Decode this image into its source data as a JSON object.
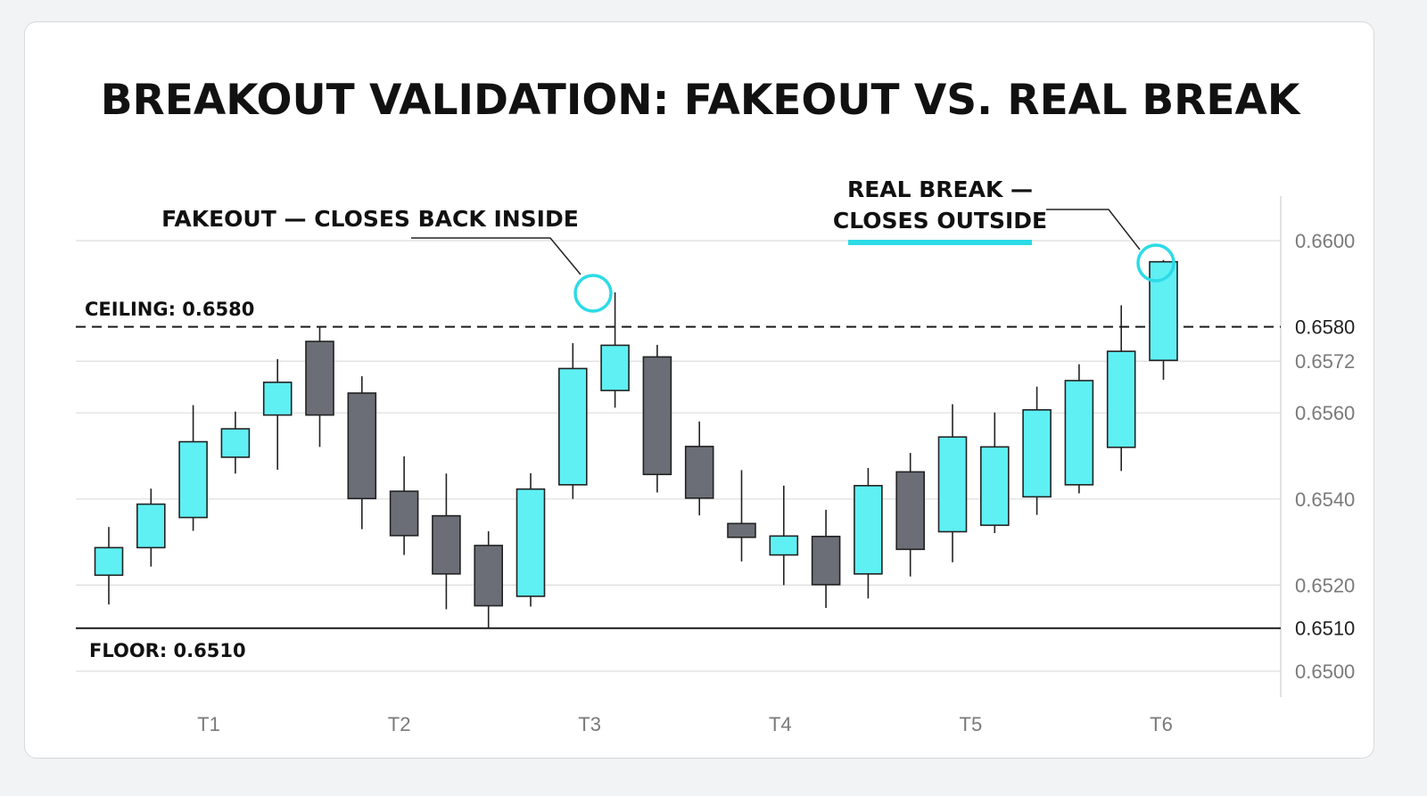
{
  "chart_data": {
    "type": "candlestick",
    "title": "BREAKOUT VALIDATION: FAKEOUT VS. REAL BREAK",
    "x_ticks": [
      "T1",
      "T2",
      "T3",
      "T4",
      "T5",
      "T6"
    ],
    "y_ticks": [
      "0.6600",
      "0.6580",
      "0.6572",
      "0.6560",
      "0.6540",
      "0.6520",
      "0.6510",
      "0.6500"
    ],
    "ylim": [
      0.65,
      0.66
    ],
    "grid": true,
    "colors": {
      "up": "#5ff0f4",
      "down": "#6b6e76",
      "accent": "#2cdbe6",
      "outline": "#222222"
    },
    "levels": {
      "ceiling": {
        "label": "CEILING: 0.6580",
        "value": 0.658,
        "style": "dashed"
      },
      "floor": {
        "label": "FLOOR: 0.6510",
        "value": 0.651,
        "style": "solid"
      }
    },
    "annotations": {
      "fakeout": {
        "text": "FAKEOUT — CLOSES BACK INSIDE",
        "candle_index": 11
      },
      "real_break": {
        "line1": "REAL BREAK —",
        "line2": "CLOSES OUTSIDE",
        "candle_index": 25
      }
    },
    "candles": [
      {
        "open": 0.65223,
        "high": 0.65335,
        "low": 0.65155,
        "close": 0.65287
      },
      {
        "open": 0.65287,
        "high": 0.65424,
        "low": 0.65243,
        "close": 0.65388
      },
      {
        "open": 0.65357,
        "high": 0.65618,
        "low": 0.65326,
        "close": 0.65533
      },
      {
        "open": 0.65497,
        "high": 0.65603,
        "low": 0.65459,
        "close": 0.65563
      },
      {
        "open": 0.65595,
        "high": 0.65725,
        "low": 0.65468,
        "close": 0.65671
      },
      {
        "open": 0.65766,
        "high": 0.65801,
        "low": 0.65521,
        "close": 0.65595
      },
      {
        "open": 0.65646,
        "high": 0.65685,
        "low": 0.6533,
        "close": 0.65401
      },
      {
        "open": 0.65418,
        "high": 0.65499,
        "low": 0.6527,
        "close": 0.65315
      },
      {
        "open": 0.65361,
        "high": 0.65459,
        "low": 0.65144,
        "close": 0.65226
      },
      {
        "open": 0.65292,
        "high": 0.65325,
        "low": 0.651,
        "close": 0.65152
      },
      {
        "open": 0.65174,
        "high": 0.6546,
        "low": 0.6515,
        "close": 0.65423
      },
      {
        "open": 0.65433,
        "high": 0.65762,
        "low": 0.654,
        "close": 0.65703
      },
      {
        "open": 0.65652,
        "high": 0.6588,
        "low": 0.65612,
        "close": 0.65757
      },
      {
        "open": 0.6573,
        "high": 0.65758,
        "low": 0.65415,
        "close": 0.65457
      },
      {
        "open": 0.65522,
        "high": 0.6558,
        "low": 0.65362,
        "close": 0.65402
      },
      {
        "open": 0.65343,
        "high": 0.65467,
        "low": 0.65255,
        "close": 0.65311
      },
      {
        "open": 0.6527,
        "high": 0.65431,
        "low": 0.652,
        "close": 0.65314
      },
      {
        "open": 0.65313,
        "high": 0.65375,
        "low": 0.65147,
        "close": 0.65201
      },
      {
        "open": 0.65226,
        "high": 0.65472,
        "low": 0.65169,
        "close": 0.65431
      },
      {
        "open": 0.65463,
        "high": 0.65507,
        "low": 0.6522,
        "close": 0.65283
      },
      {
        "open": 0.65324,
        "high": 0.6562,
        "low": 0.65253,
        "close": 0.65544
      },
      {
        "open": 0.65339,
        "high": 0.65601,
        "low": 0.65321,
        "close": 0.65521
      },
      {
        "open": 0.65405,
        "high": 0.65661,
        "low": 0.65363,
        "close": 0.65607
      },
      {
        "open": 0.65433,
        "high": 0.65713,
        "low": 0.65413,
        "close": 0.65675
      },
      {
        "open": 0.6552,
        "high": 0.6585,
        "low": 0.65465,
        "close": 0.65743
      },
      {
        "open": 0.65722,
        "high": 0.65955,
        "low": 0.65677,
        "close": 0.65951
      }
    ]
  }
}
